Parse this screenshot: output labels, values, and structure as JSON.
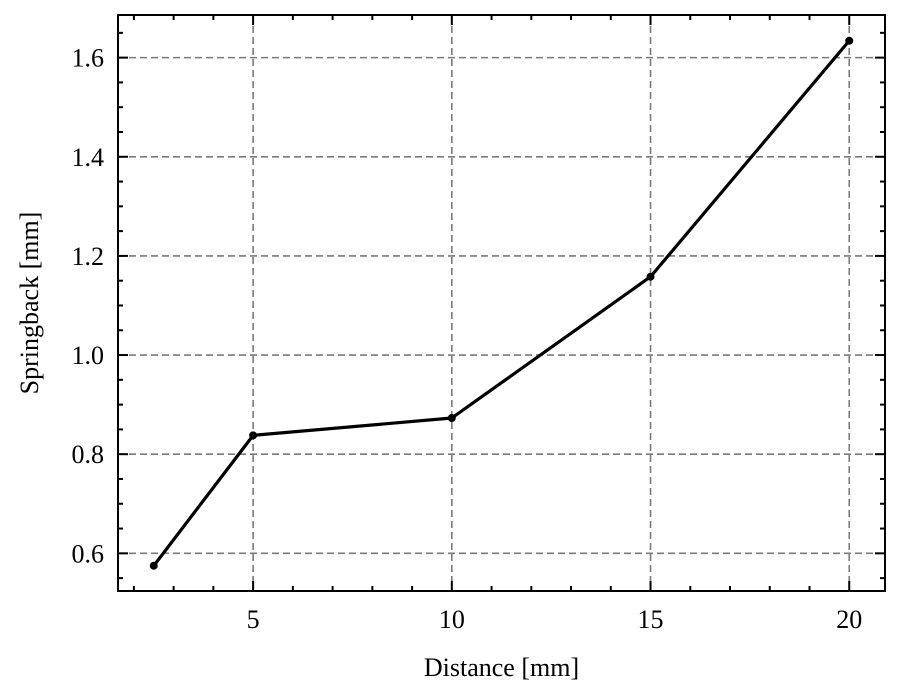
{
  "chart_data": {
    "type": "line",
    "title": "",
    "xlabel": "Distance [mm]",
    "ylabel": "Springback [mm]",
    "x": [
      2.5,
      5,
      10,
      15,
      20
    ],
    "series": [
      {
        "values": [
          0.575,
          0.838,
          0.873,
          1.158,
          1.634
        ]
      }
    ],
    "xlim": [
      1.6,
      20.9
    ],
    "ylim": [
      0.524,
      1.686
    ],
    "xticks": [
      5,
      10,
      15,
      20
    ],
    "xtick_labels": [
      "5",
      "10",
      "15",
      "20"
    ],
    "yticks": [
      0.6,
      0.8,
      1.0,
      1.2,
      1.4,
      1.6
    ],
    "ytick_labels": [
      "0.6",
      "0.8",
      "1.0",
      "1.2",
      "1.4",
      "1.6"
    ],
    "grid": true,
    "line_color": "#000000",
    "grid_color": "#7a7a7a"
  }
}
